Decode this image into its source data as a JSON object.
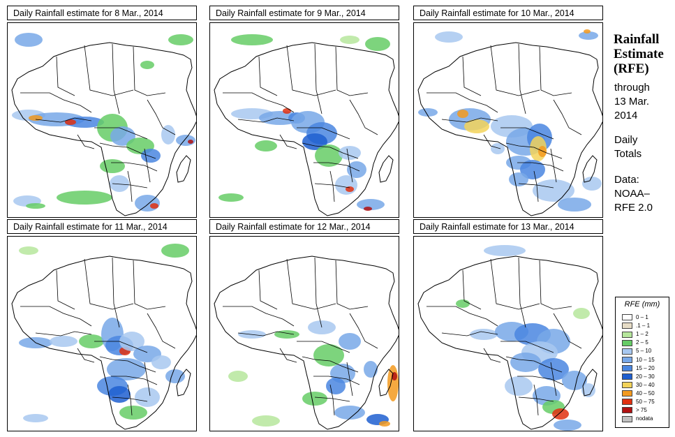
{
  "panels": [
    {
      "title": "Daily Rainfall estimate for  8 Mar., 2014"
    },
    {
      "title": "Daily Rainfall estimate for  9 Mar., 2014"
    },
    {
      "title": "Daily Rainfall estimate for  10 Mar., 2014"
    },
    {
      "title": "Daily Rainfall estimate for  11 Mar., 2014"
    },
    {
      "title": "Daily Rainfall estimate for  12 Mar., 2014"
    },
    {
      "title": "Daily Rainfall estimate for  13 Mar., 2014"
    }
  ],
  "sidebar": {
    "title_line1": "Rainfall",
    "title_line2": "Estimate",
    "title_line3": "(RFE)",
    "through_label": "through",
    "through_line1": "13 Mar.",
    "through_line2": "2014",
    "totals_line1": "Daily",
    "totals_line2": "Totals",
    "data_line1": "Data:",
    "data_line2": "NOAA–",
    "data_line3": "RFE 2.0"
  },
  "legend": {
    "title": "RFE (mm)",
    "items": [
      {
        "label": "0 – 1",
        "color": "#ffffff"
      },
      {
        "label": ".1 – 1",
        "color": "#e6dcc6"
      },
      {
        "label": "1 – 2",
        "color": "#b6e69c"
      },
      {
        "label": "2 – 5",
        "color": "#66cc66"
      },
      {
        "label": "5 – 10",
        "color": "#a8c8f0"
      },
      {
        "label": "10 – 15",
        "color": "#78a8e8"
      },
      {
        "label": "15 – 20",
        "color": "#4a86e0"
      },
      {
        "label": "20 – 30",
        "color": "#1f5fd0"
      },
      {
        "label": "30 – 40",
        "color": "#f3d35a"
      },
      {
        "label": "40 – 50",
        "color": "#f39a1f"
      },
      {
        "label": "50 – 75",
        "color": "#e03010"
      },
      {
        "label": "> 75",
        "color": "#b01010"
      },
      {
        "label": "nodata",
        "color": "#c0c0c0"
      }
    ]
  }
}
